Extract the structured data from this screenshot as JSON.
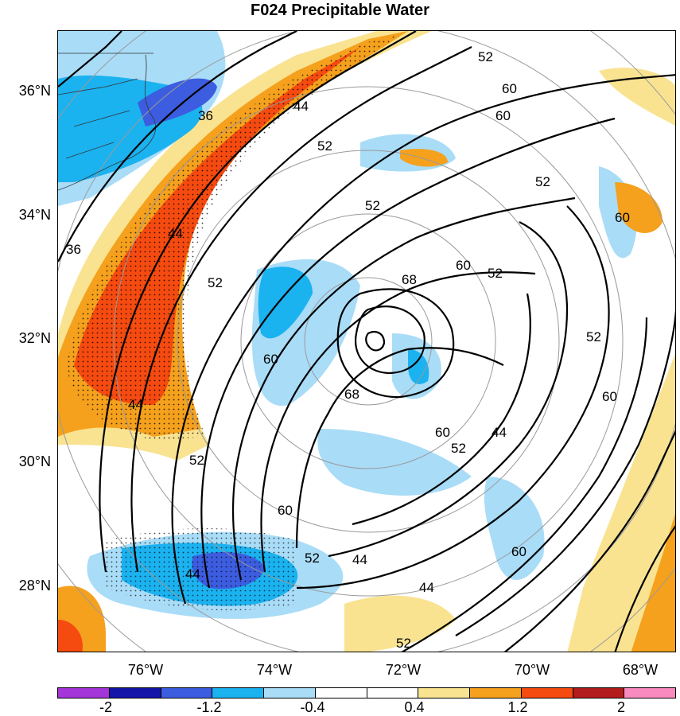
{
  "title": "F024 Precipitable Water",
  "lat_labels": [
    "36°N",
    "34°N",
    "32°N",
    "30°N",
    "28°N"
  ],
  "lon_labels": [
    "76°W",
    "74°W",
    "72°W",
    "70°W",
    "68°W"
  ],
  "colorbar": {
    "colors": [
      "#a335d9",
      "#1414a8",
      "#3c5de0",
      "#1bb2f0",
      "#a9dcf7",
      "#ffffff",
      "#ffffff",
      "#f9e391",
      "#f5a11d",
      "#f54a10",
      "#b31c1c",
      "#f98ac0"
    ],
    "labels": [
      "-2",
      "-1.2",
      "-0.4",
      "0.4",
      "1.2",
      "2"
    ]
  },
  "contour_labels": {
    "l36a": "36",
    "l36b": "36",
    "l44a": "44",
    "l44b": "44",
    "l44c": "44",
    "l44d": "44",
    "l44e": "44",
    "l44f": "44",
    "l44g": "44",
    "l52a": "52",
    "l52b": "52",
    "l52c": "52",
    "l52d": "52",
    "l52e": "52",
    "l52f": "52",
    "l52g": "52",
    "l52h": "52",
    "l52i": "52",
    "l52j": "52",
    "l52k": "52",
    "l60a": "60",
    "l60b": "60",
    "l60c": "60",
    "l60d": "60",
    "l60e": "60",
    "l60f": "60",
    "l60g": "60",
    "l60h": "60",
    "l60i": "60",
    "l68a": "68",
    "l68b": "68"
  }
}
